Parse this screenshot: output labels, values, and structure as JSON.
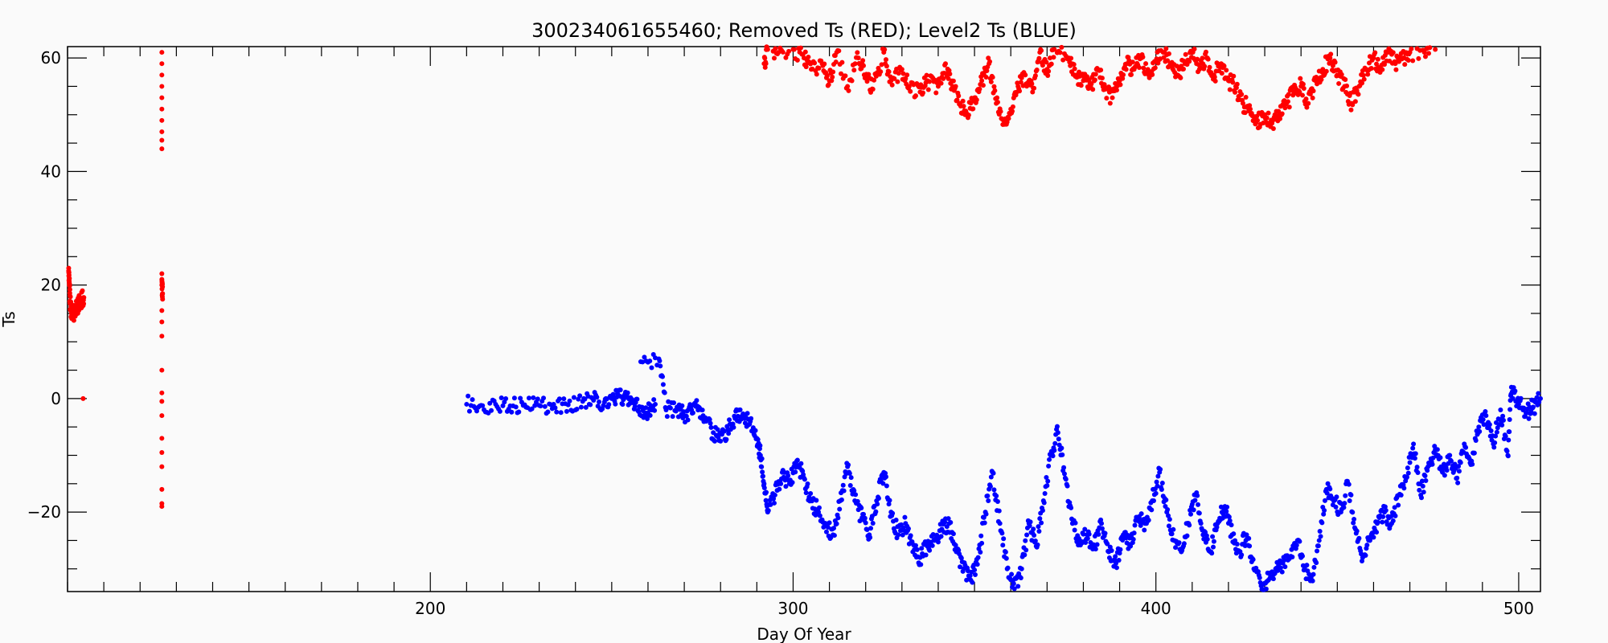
{
  "chart_data": {
    "type": "scatter",
    "title": "300234061655460; Removed Ts (RED); Level2 Ts (BLUE)",
    "xlabel": "Day Of Year",
    "ylabel": "Ts",
    "xlim": [
      100,
      506
    ],
    "ylim": [
      -34,
      62
    ],
    "x_ticks": [
      200,
      300,
      400,
      500
    ],
    "x_tick_labels": [
      "200",
      "300",
      "400",
      "500"
    ],
    "y_ticks": [
      -20,
      0,
      20,
      40,
      60
    ],
    "y_tick_labels": [
      "−20",
      "0",
      "20",
      "40",
      "60"
    ],
    "x_minor_step": 10,
    "y_minor_step": 5,
    "grid": false,
    "series": [
      {
        "color": "#ff0000",
        "points": [
          [
            100.3,
            22.5
          ],
          [
            100.5,
            20.0
          ],
          [
            100.7,
            17.0
          ],
          [
            101.0,
            15.5
          ],
          [
            101.5,
            15.0
          ],
          [
            102.0,
            15.5
          ],
          [
            102.6,
            16.0
          ],
          [
            103.0,
            16.5
          ],
          [
            103.6,
            17.0
          ],
          [
            104.0,
            17.5
          ],
          [
            104.5,
            17.8
          ],
          [
            104.3,
            0.0
          ],
          [
            126.0,
            61.0
          ],
          [
            126.0,
            59.0
          ],
          [
            126.0,
            57.0
          ],
          [
            126.0,
            55.0
          ],
          [
            126.0,
            53.0
          ],
          [
            126.0,
            51.0
          ],
          [
            126.0,
            49.0
          ],
          [
            126.0,
            47.0
          ],
          [
            126.0,
            45.5
          ],
          [
            126.0,
            44.0
          ],
          [
            126.0,
            22.0
          ],
          [
            126.0,
            21.0
          ],
          [
            126.0,
            20.0
          ],
          [
            126.2,
            18.5
          ],
          [
            126.2,
            17.5
          ],
          [
            126.0,
            15.5
          ],
          [
            126.0,
            13.5
          ],
          [
            126.0,
            11.0
          ],
          [
            126.0,
            5.0
          ],
          [
            126.0,
            1.0
          ],
          [
            126.0,
            -0.5
          ],
          [
            126.0,
            -3.0
          ],
          [
            126.0,
            -7.0
          ],
          [
            126.0,
            -9.5
          ],
          [
            126.0,
            -12.0
          ],
          [
            126.0,
            -16.0
          ],
          [
            126.0,
            -18.5
          ],
          [
            126.0,
            -19.0
          ],
          [
            292.0,
            59.0
          ],
          [
            293.0,
            61.5
          ],
          [
            296.0,
            61.0
          ],
          [
            300.0,
            61.5
          ],
          [
            303.0,
            60.0
          ],
          [
            305.0,
            58.0
          ],
          [
            308.0,
            59.0
          ],
          [
            310.0,
            56.0
          ],
          [
            312.0,
            61.0
          ],
          [
            315.0,
            55.0
          ],
          [
            318.0,
            60.0
          ],
          [
            320.0,
            57.0
          ],
          [
            322.0,
            54.5
          ],
          [
            325.0,
            61.0
          ],
          [
            327.0,
            56.0
          ],
          [
            330.0,
            58.0
          ],
          [
            332.0,
            55.0
          ],
          [
            335.0,
            54.0
          ],
          [
            337.0,
            56.0
          ],
          [
            340.0,
            55.0
          ],
          [
            342.0,
            59.0
          ],
          [
            344.0,
            55.0
          ],
          [
            346.0,
            52.0
          ],
          [
            348.0,
            50.0
          ],
          [
            350.0,
            53.0
          ],
          [
            352.0,
            56.0
          ],
          [
            354.0,
            59.0
          ],
          [
            356.0,
            52.0
          ],
          [
            358.0,
            49.0
          ],
          [
            360.0,
            51.0
          ],
          [
            362.0,
            55.0
          ],
          [
            364.0,
            57.0
          ],
          [
            366.0,
            54.0
          ],
          [
            368.0,
            61.0
          ],
          [
            370.0,
            58.0
          ],
          [
            372.0,
            61.5
          ],
          [
            376.0,
            60.0
          ],
          [
            378.0,
            57.0
          ],
          [
            380.0,
            56.0
          ],
          [
            382.0,
            55.0
          ],
          [
            384.0,
            58.0
          ],
          [
            386.0,
            54.5
          ],
          [
            388.0,
            53.0
          ],
          [
            390.0,
            56.0
          ],
          [
            392.0,
            59.0
          ],
          [
            394.0,
            58.0
          ],
          [
            396.0,
            60.0
          ],
          [
            398.0,
            57.0
          ],
          [
            400.0,
            59.5
          ],
          [
            402.0,
            61.0
          ],
          [
            404.0,
            59.0
          ],
          [
            406.0,
            57.0
          ],
          [
            408.0,
            59.0
          ],
          [
            410.0,
            61.0
          ],
          [
            412.0,
            58.0
          ],
          [
            414.0,
            60.0
          ],
          [
            416.0,
            57.0
          ],
          [
            418.0,
            59.0
          ],
          [
            420.0,
            56.0
          ],
          [
            422.0,
            55.0
          ],
          [
            424.0,
            52.0
          ],
          [
            426.0,
            51.0
          ],
          [
            428.0,
            49.0
          ],
          [
            430.0,
            50.0
          ],
          [
            432.0,
            48.5
          ],
          [
            434.0,
            50.0
          ],
          [
            436.0,
            52.0
          ],
          [
            438.0,
            54.0
          ],
          [
            440.0,
            55.0
          ],
          [
            442.0,
            52.0
          ],
          [
            444.0,
            56.0
          ],
          [
            446.0,
            58.0
          ],
          [
            448.0,
            60.0
          ],
          [
            450.0,
            57.0
          ],
          [
            452.0,
            55.0
          ],
          [
            454.0,
            52.0
          ],
          [
            456.0,
            55.0
          ],
          [
            458.0,
            58.0
          ],
          [
            460.0,
            60.0
          ],
          [
            462.0,
            58.0
          ],
          [
            464.0,
            61.0
          ],
          [
            466.0,
            59.0
          ],
          [
            468.0,
            60.0
          ],
          [
            470.0,
            61.0
          ],
          [
            474.0,
            61.0
          ],
          [
            477.0,
            61.5
          ]
        ]
      },
      {
        "color": "#0000ff",
        "points": [
          [
            210.0,
            -1.0
          ],
          [
            214.0,
            -1.2
          ],
          [
            218.0,
            -1.0
          ],
          [
            222.0,
            -1.3
          ],
          [
            226.0,
            -1.1
          ],
          [
            230.0,
            -1.2
          ],
          [
            234.0,
            -1.0
          ],
          [
            238.0,
            -1.1
          ],
          [
            242.0,
            -0.5
          ],
          [
            245.0,
            -0.3
          ],
          [
            248.0,
            -0.6
          ],
          [
            250.0,
            0.0
          ],
          [
            252.0,
            0.5
          ],
          [
            254.0,
            0.2
          ],
          [
            256.0,
            -0.5
          ],
          [
            258.0,
            -1.5
          ],
          [
            260.0,
            -2.5
          ],
          [
            262.0,
            -1.0
          ],
          [
            258.0,
            6.5
          ],
          [
            263.0,
            7.0
          ],
          [
            265.0,
            -2.0
          ],
          [
            268.0,
            -1.5
          ],
          [
            270.0,
            -3.0
          ],
          [
            272.0,
            -2.0
          ],
          [
            274.0,
            -1.5
          ],
          [
            276.0,
            -4.0
          ],
          [
            278.0,
            -6.0
          ],
          [
            280.0,
            -7.5
          ],
          [
            282.0,
            -5.5
          ],
          [
            284.0,
            -3.5
          ],
          [
            286.0,
            -3.0
          ],
          [
            288.0,
            -4.5
          ],
          [
            290.0,
            -7.0
          ],
          [
            291.0,
            -10.0
          ],
          [
            292.0,
            -15.0
          ],
          [
            293.0,
            -20.0
          ],
          [
            295.0,
            -17.0
          ],
          [
            297.0,
            -13.0
          ],
          [
            299.0,
            -15.0
          ],
          [
            301.0,
            -11.0
          ],
          [
            303.0,
            -14.0
          ],
          [
            305.0,
            -18.0
          ],
          [
            307.0,
            -20.0
          ],
          [
            309.0,
            -22.0
          ],
          [
            311.0,
            -24.0
          ],
          [
            313.0,
            -18.0
          ],
          [
            315.0,
            -12.0
          ],
          [
            317.0,
            -18.0
          ],
          [
            319.0,
            -21.0
          ],
          [
            321.0,
            -24.0
          ],
          [
            323.0,
            -18.0
          ],
          [
            325.0,
            -13.0
          ],
          [
            327.0,
            -20.0
          ],
          [
            329.0,
            -24.0
          ],
          [
            331.0,
            -22.0
          ],
          [
            333.0,
            -27.0
          ],
          [
            335.0,
            -28.0
          ],
          [
            337.0,
            -26.0
          ],
          [
            339.0,
            -25.0
          ],
          [
            341.0,
            -23.0
          ],
          [
            343.0,
            -22.0
          ],
          [
            345.0,
            -27.0
          ],
          [
            347.0,
            -30.0
          ],
          [
            349.0,
            -32.0
          ],
          [
            351.0,
            -28.0
          ],
          [
            353.0,
            -20.0
          ],
          [
            355.0,
            -13.0
          ],
          [
            357.0,
            -22.0
          ],
          [
            359.0,
            -30.0
          ],
          [
            361.0,
            -33.5
          ],
          [
            363.0,
            -30.0
          ],
          [
            365.0,
            -22.0
          ],
          [
            367.0,
            -26.0
          ],
          [
            369.0,
            -18.0
          ],
          [
            371.0,
            -10.0
          ],
          [
            373.0,
            -6.0
          ],
          [
            375.0,
            -14.0
          ],
          [
            377.0,
            -22.0
          ],
          [
            379.0,
            -25.0
          ],
          [
            381.0,
            -24.0
          ],
          [
            383.0,
            -26.0
          ],
          [
            385.0,
            -22.0
          ],
          [
            387.0,
            -27.0
          ],
          [
            389.0,
            -29.0
          ],
          [
            391.0,
            -24.0
          ],
          [
            393.0,
            -26.0
          ],
          [
            395.0,
            -21.0
          ],
          [
            397.0,
            -22.0
          ],
          [
            399.0,
            -18.0
          ],
          [
            401.0,
            -13.0
          ],
          [
            403.0,
            -20.0
          ],
          [
            405.0,
            -25.0
          ],
          [
            407.0,
            -27.0
          ],
          [
            409.0,
            -22.0
          ],
          [
            411.0,
            -17.0
          ],
          [
            413.0,
            -24.0
          ],
          [
            415.0,
            -27.0
          ],
          [
            417.0,
            -22.0
          ],
          [
            419.0,
            -19.0
          ],
          [
            421.0,
            -24.0
          ],
          [
            423.0,
            -27.0
          ],
          [
            425.0,
            -24.0
          ],
          [
            427.0,
            -30.0
          ],
          [
            429.0,
            -33.0
          ],
          [
            431.0,
            -32.0
          ],
          [
            433.0,
            -30.0
          ],
          [
            435.0,
            -29.0
          ],
          [
            437.0,
            -28.0
          ],
          [
            439.0,
            -25.0
          ],
          [
            441.0,
            -30.0
          ],
          [
            443.0,
            -32.0
          ],
          [
            445.0,
            -25.0
          ],
          [
            447.0,
            -16.0
          ],
          [
            449.0,
            -18.0
          ],
          [
            451.0,
            -20.0
          ],
          [
            453.0,
            -15.0
          ],
          [
            455.0,
            -23.0
          ],
          [
            457.0,
            -28.0
          ],
          [
            459.0,
            -25.0
          ],
          [
            461.0,
            -22.0
          ],
          [
            463.0,
            -20.0
          ],
          [
            465.0,
            -22.0
          ],
          [
            467.0,
            -17.0
          ],
          [
            469.0,
            -14.0
          ],
          [
            471.0,
            -8.0
          ],
          [
            473.0,
            -17.0
          ],
          [
            475.0,
            -12.0
          ],
          [
            477.0,
            -9.0
          ],
          [
            479.0,
            -13.0
          ],
          [
            481.0,
            -10.0
          ],
          [
            483.0,
            -14.0
          ],
          [
            485.0,
            -8.0
          ],
          [
            487.0,
            -11.0
          ],
          [
            489.0,
            -5.0
          ],
          [
            491.0,
            -3.0
          ],
          [
            493.0,
            -8.0
          ],
          [
            495.0,
            -2.0
          ],
          [
            497.0,
            -10.0
          ],
          [
            498.0,
            2.0
          ],
          [
            500.0,
            -1.0
          ],
          [
            502.0,
            -2.5
          ],
          [
            504.0,
            -1.5
          ],
          [
            506.0,
            0.0
          ]
        ]
      }
    ]
  }
}
